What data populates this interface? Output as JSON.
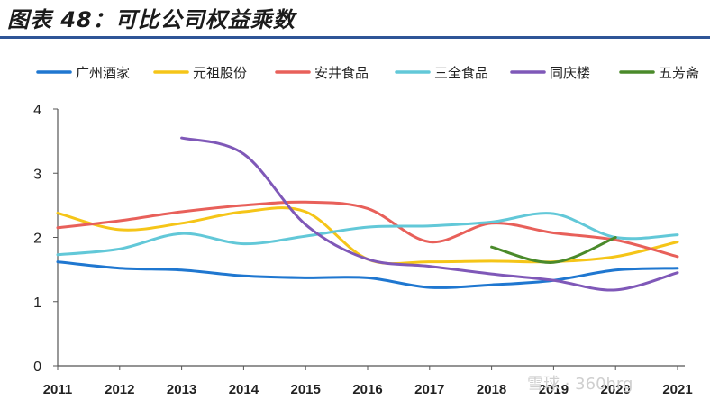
{
  "title": "图表 48：可比公司权益乘数",
  "watermark": "雪球 · 360hrg",
  "chart_data": {
    "type": "line",
    "title": "图表 48：可比公司权益乘数",
    "xlabel": "",
    "ylabel": "",
    "x": [
      2011,
      2012,
      2013,
      2014,
      2015,
      2016,
      2017,
      2018,
      2019,
      2020,
      2021
    ],
    "ylim": [
      0,
      4
    ],
    "yticks": [
      0,
      1,
      2,
      3,
      4
    ],
    "grid": false,
    "legend_position": "top",
    "series": [
      {
        "name": "广州酒家",
        "color": "#1f77d0",
        "values": [
          1.62,
          1.52,
          1.49,
          1.4,
          1.37,
          1.37,
          1.22,
          1.26,
          1.33,
          1.49,
          1.52
        ]
      },
      {
        "name": "元祖股份",
        "color": "#f5c518",
        "values": [
          2.38,
          2.12,
          2.22,
          2.4,
          2.4,
          1.66,
          1.62,
          1.63,
          1.62,
          1.7,
          1.93
        ]
      },
      {
        "name": "安井食品",
        "color": "#e8605a",
        "values": [
          2.15,
          2.26,
          2.4,
          2.5,
          2.55,
          2.45,
          1.93,
          2.22,
          2.07,
          1.96,
          1.7
        ]
      },
      {
        "name": "三全食品",
        "color": "#62c8d8",
        "values": [
          1.73,
          1.82,
          2.06,
          1.9,
          2.02,
          2.16,
          2.18,
          2.24,
          2.37,
          2.0,
          2.04
        ]
      },
      {
        "name": "同庆楼",
        "color": "#7f58b8",
        "values": [
          null,
          null,
          3.55,
          3.3,
          2.2,
          1.66,
          1.55,
          1.43,
          1.33,
          1.18,
          1.45
        ]
      },
      {
        "name": "五芳斋",
        "color": "#4a8a2a",
        "values": [
          null,
          null,
          null,
          null,
          null,
          null,
          null,
          1.85,
          1.61,
          2.0,
          null
        ]
      }
    ]
  }
}
